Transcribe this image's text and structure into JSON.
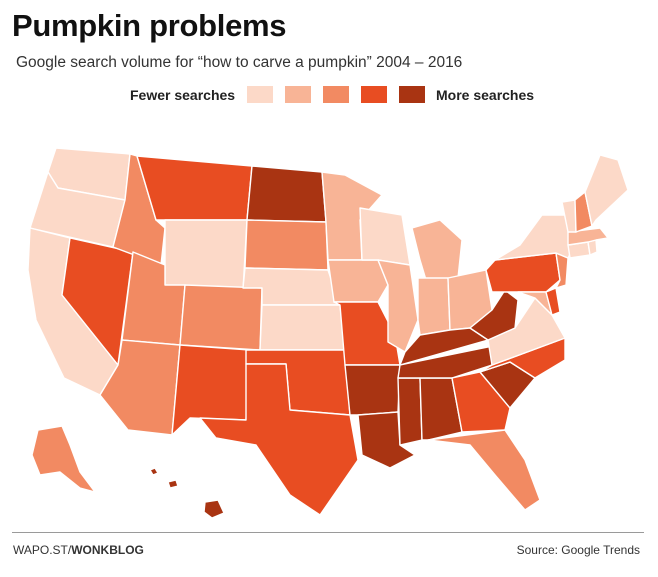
{
  "title": "Pumpkin problems",
  "subtitle": "Google search volume for “how to carve a pumpkin” 2004 – 2016",
  "legend": {
    "low_label": "Fewer searches",
    "high_label": "More searches",
    "colors": [
      "#fcd9c8",
      "#f8b496",
      "#f28a62",
      "#e84d22",
      "#a93412"
    ]
  },
  "footer": {
    "credit_prefix": "WAPO.ST/",
    "credit_bold": "WONKBLOG",
    "source": "Source: Google Trends"
  },
  "map_data": {
    "scale": "5 levels, 1 = fewer searches, 5 = more searches",
    "levels": {
      "WA": 1,
      "OR": 1,
      "CA": 1,
      "ID": 3,
      "NV": 4,
      "MT": 4,
      "WY": 1,
      "UT": 3,
      "AZ": 3,
      "CO": 3,
      "NM": 4,
      "ND": 5,
      "SD": 3,
      "NE": 1,
      "KS": 1,
      "OK": 4,
      "TX": 4,
      "MN": 2,
      "IA": 2,
      "MO": 4,
      "AR": 5,
      "LA": 5,
      "WI": 1,
      "IL": 2,
      "MI": 2,
      "IN": 2,
      "OH": 2,
      "KY": 5,
      "TN": 5,
      "MS": 5,
      "AL": 5,
      "GA": 4,
      "FL": 3,
      "SC": 5,
      "NC": 4,
      "VA": 1,
      "WV": 5,
      "PA": 4,
      "NY": 1,
      "VT": 1,
      "NH": 3,
      "ME": 1,
      "MA": 2,
      "CT": 1,
      "RI": 1,
      "NJ": 3,
      "DE": 4,
      "MD": 2,
      "AK": 3,
      "HI": 5
    }
  }
}
